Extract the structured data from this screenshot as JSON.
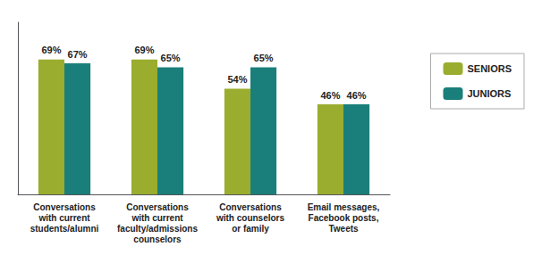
{
  "chart_data": {
    "type": "bar",
    "categories": [
      "Conversations\nwith current\nstudents/alumni",
      "Conversations\nwith current\nfaculty/admissions\ncounselors",
      "Conversations\nwith counselors\nor family",
      "Email messages,\nFacebook posts,\nTweets"
    ],
    "series": [
      {
        "name": "SENIORS",
        "color": "#9aad2e",
        "values": [
          69,
          69,
          54,
          46
        ],
        "value_labels": [
          "69%",
          "69%",
          "54%",
          "46%"
        ]
      },
      {
        "name": "JUNIORS",
        "color": "#1a7f7a",
        "values": [
          67,
          65,
          65,
          46
        ],
        "value_labels": [
          "67%",
          "65%",
          "65%",
          "46%"
        ]
      }
    ],
    "ylim": [
      0,
      88
    ],
    "data_labels": true,
    "tick_labels": "x",
    "grid": false,
    "legend": "right"
  }
}
